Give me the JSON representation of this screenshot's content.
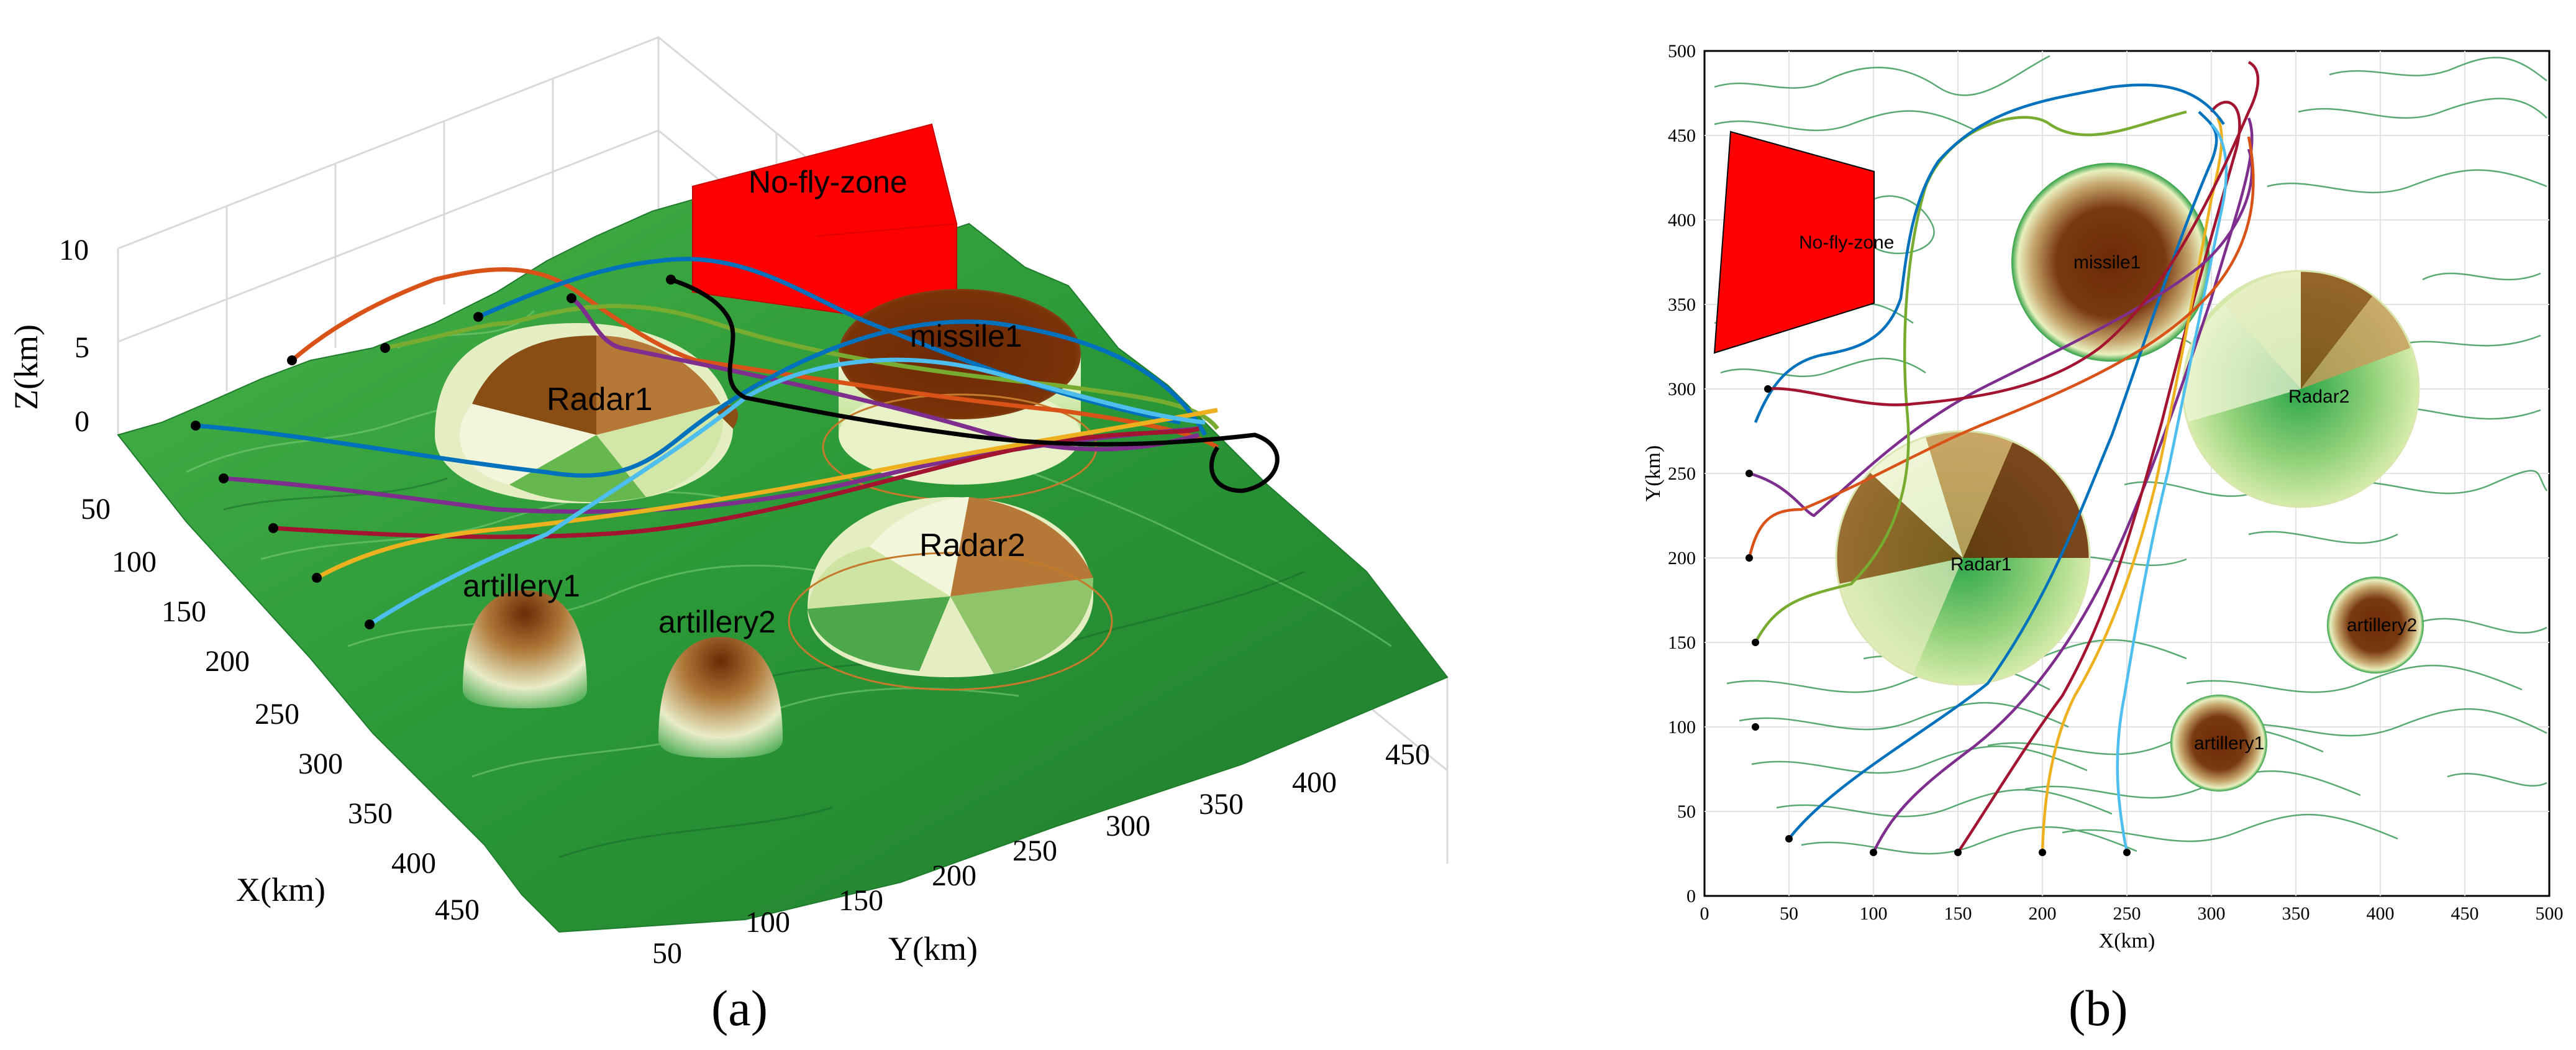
{
  "panel_a": {
    "caption": "(a)",
    "zlabel": "Z(km)",
    "xlabel": "X(km)",
    "ylabel": "Y(km)",
    "z_ticks": [
      "0",
      "5",
      "10"
    ],
    "x_ticks": [
      "50",
      "100",
      "150",
      "200",
      "250",
      "300",
      "350",
      "400",
      "450"
    ],
    "y_ticks": [
      "50",
      "100",
      "150",
      "200",
      "250",
      "300",
      "350",
      "400",
      "450"
    ],
    "labels": {
      "no_fly_zone": "No-fly-zone",
      "missile1": "missile1",
      "radar1": "Radar1",
      "radar2": "Radar2",
      "artillery1": "artillery1",
      "artillery2": "artillery2"
    }
  },
  "panel_b": {
    "caption": "(b)",
    "xlabel": "X(km)",
    "ylabel": "Y(km)",
    "x_ticks": [
      "0",
      "50",
      "100",
      "150",
      "200",
      "250",
      "300",
      "350",
      "400",
      "450",
      "500"
    ],
    "y_ticks": [
      "0",
      "50",
      "100",
      "150",
      "200",
      "250",
      "300",
      "350",
      "400",
      "450",
      "500"
    ],
    "labels": {
      "no_fly_zone": "No-fly-zone",
      "missile1": "missile1",
      "radar1": "Radar1",
      "radar2": "Radar2",
      "artillery1": "artillery1",
      "artillery2": "artillery2"
    }
  },
  "colors": {
    "terrain": "#2e9a3a",
    "no_fly_zone": "#ff0000",
    "threat_dark": "#6b2a05",
    "threat_light": "#f0f6d8",
    "contour": "#3c9a5a",
    "path_colors": [
      "#0072bd",
      "#d95319",
      "#edb120",
      "#7e2f8e",
      "#77ac30",
      "#4dbeee",
      "#a2142f",
      "#000000"
    ]
  }
}
